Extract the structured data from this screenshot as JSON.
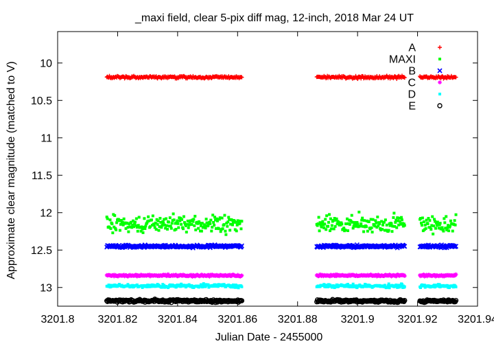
{
  "chart_data": {
    "type": "scatter",
    "title": "_maxi field, clear 5-pix diff mag, 12-inch, 2018 Mar 24 UT",
    "xlabel": "Julian Date - 2455000",
    "ylabel": "Approximate clear magnitude (matched to V)",
    "xlim": [
      3201.8,
      3201.94
    ],
    "ylim": [
      13.25,
      9.58
    ],
    "y_inverted": true,
    "grid": false,
    "legend_position": "top-right",
    "x_ticks": [
      3201.8,
      3201.82,
      3201.84,
      3201.86,
      3201.88,
      3201.9,
      3201.92,
      3201.94
    ],
    "x_tick_labels": [
      "3201.8",
      "3201.82",
      "3201.84",
      "3201.86",
      "3201.88",
      "3201.9",
      "3201.92",
      "3201.94"
    ],
    "y_ticks": [
      10,
      10.5,
      11,
      11.5,
      12,
      12.5,
      13
    ],
    "y_tick_labels": [
      "10",
      "10.5",
      "11",
      "11.5",
      "12",
      "12.5",
      "13"
    ],
    "time_segments": [
      [
        3201.8164,
        3201.8614
      ],
      [
        3201.8864,
        3201.9157
      ],
      [
        3201.9208,
        3201.9328
      ]
    ],
    "series": [
      {
        "name": "A",
        "marker": "plus",
        "color": "#ff0000",
        "mean": 10.19,
        "scatter": 0.015
      },
      {
        "name": "MAXI",
        "marker": "square",
        "color": "#00ff00",
        "mean": 12.15,
        "scatter": 0.1
      },
      {
        "name": "B",
        "marker": "cross",
        "color": "#0000ff",
        "mean": 12.45,
        "scatter": 0.015
      },
      {
        "name": "C",
        "marker": "star",
        "color": "#ff00ff",
        "mean": 12.84,
        "scatter": 0.01
      },
      {
        "name": "D",
        "marker": "square",
        "color": "#00ffff",
        "mean": 12.98,
        "scatter": 0.02
      },
      {
        "name": "E",
        "marker": "circle",
        "color": "#000000",
        "mean": 13.18,
        "scatter": 0.015
      }
    ]
  }
}
